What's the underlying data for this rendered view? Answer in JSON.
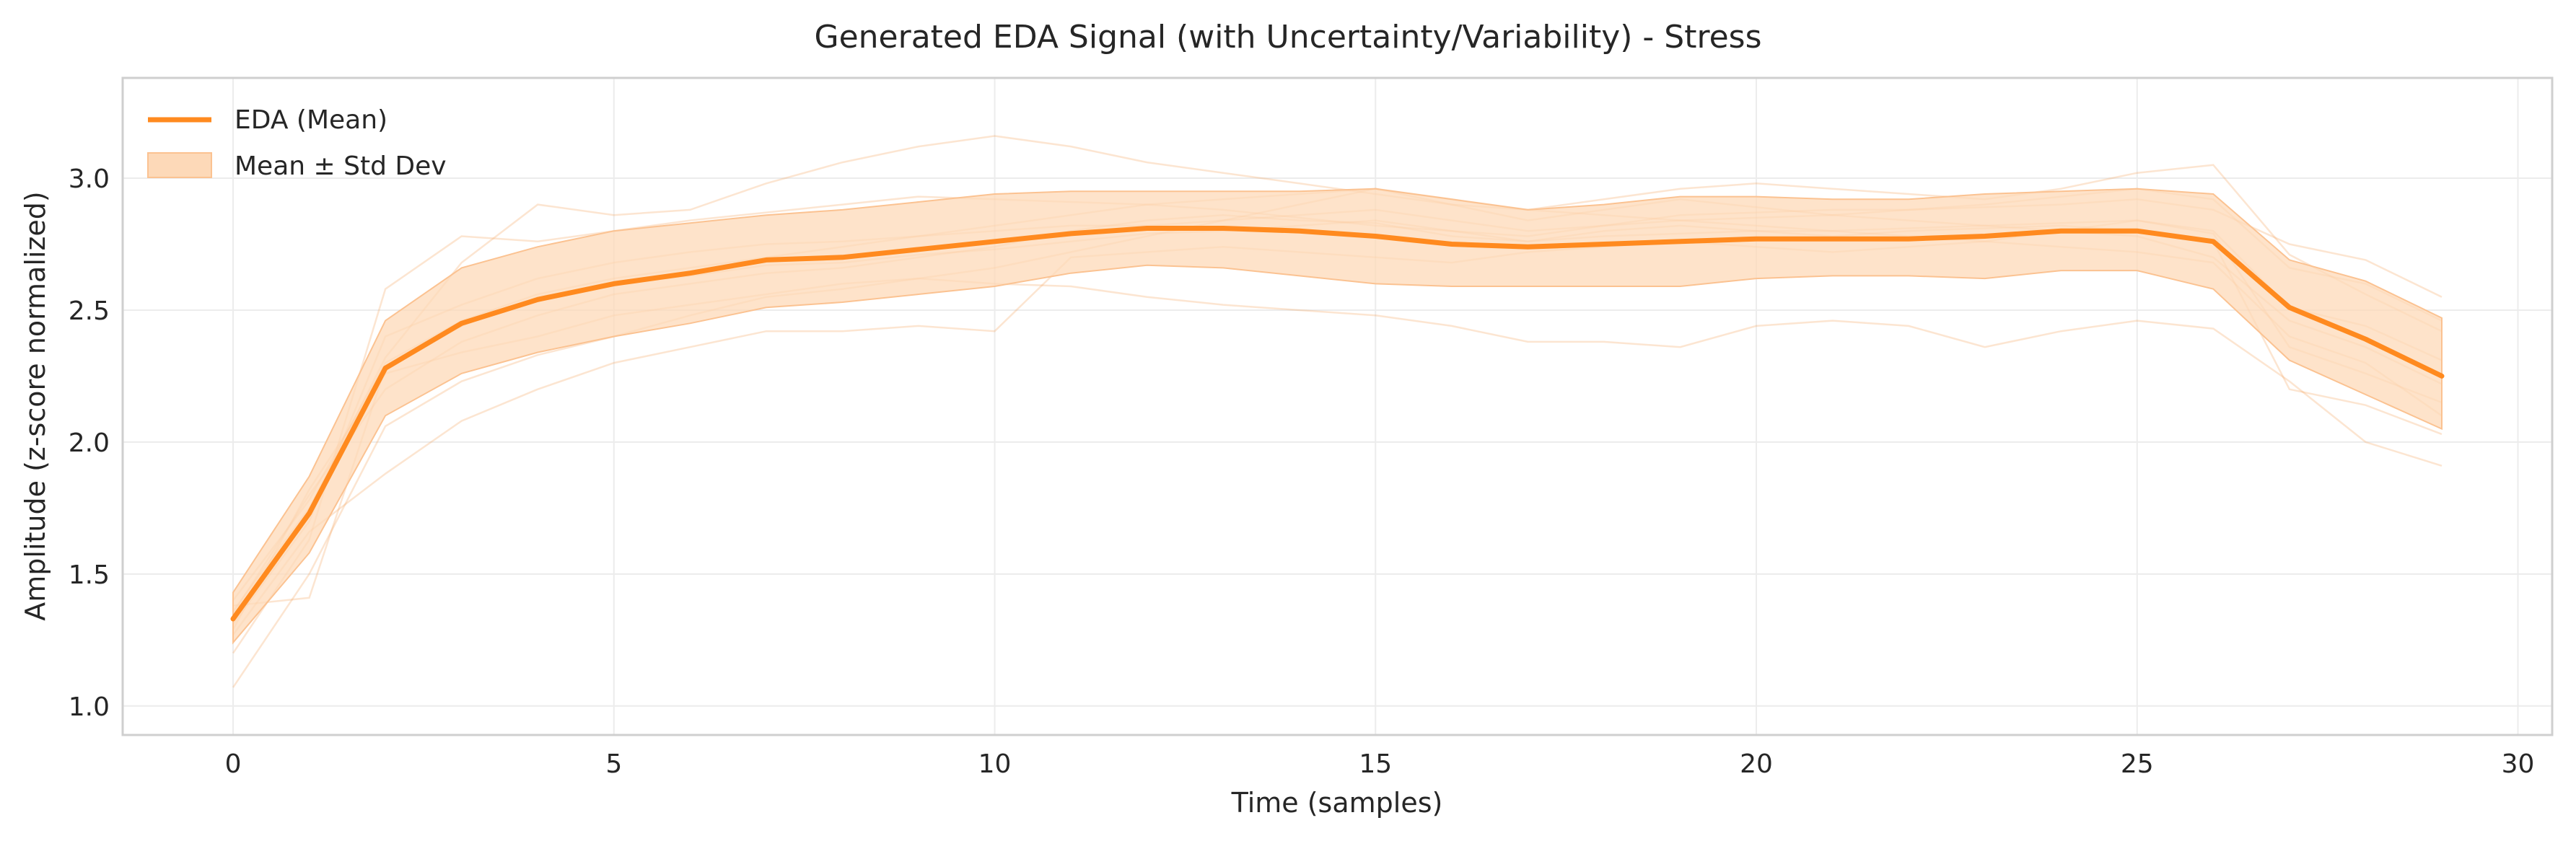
{
  "chart_data": {
    "type": "line",
    "title": "Generated EDA Signal (with Uncertainty/Variability) - Stress",
    "xlabel": "Time (samples)",
    "ylabel": "Amplitude (z-score normalized)",
    "xlim": [
      -1.45,
      30.45
    ],
    "ylim": [
      0.89,
      3.38
    ],
    "xticks": [
      0,
      5,
      10,
      15,
      20,
      25,
      30
    ],
    "yticks": [
      1.0,
      1.5,
      2.0,
      2.5,
      3.0
    ],
    "grid": true,
    "legend_position": "top-left",
    "legend": [
      "EDA (Mean)",
      "Mean ± Std Dev"
    ],
    "colors": {
      "mean": "#ff8a1f",
      "band": "#fdd9b8",
      "band_edge": "#fbc291",
      "samples": "#f6a05a",
      "grid": "#ececec",
      "frame": "#cfcfcf",
      "text": "#262626"
    },
    "x": [
      0,
      1,
      2,
      3,
      4,
      5,
      6,
      7,
      8,
      9,
      10,
      11,
      12,
      13,
      14,
      15,
      16,
      17,
      18,
      19,
      20,
      21,
      22,
      23,
      24,
      25,
      26,
      27,
      28,
      29
    ],
    "series": [
      {
        "name": "EDA (Mean)",
        "values": [
          1.33,
          1.73,
          2.28,
          2.45,
          2.54,
          2.6,
          2.64,
          2.69,
          2.7,
          2.73,
          2.76,
          2.79,
          2.81,
          2.81,
          2.8,
          2.78,
          2.75,
          2.74,
          2.75,
          2.76,
          2.77,
          2.77,
          2.77,
          2.78,
          2.8,
          2.8,
          2.76,
          2.51,
          2.39,
          2.25
        ]
      }
    ],
    "band": {
      "name": "Mean ± Std Dev",
      "upper": [
        1.43,
        1.87,
        2.46,
        2.66,
        2.74,
        2.8,
        2.83,
        2.86,
        2.88,
        2.91,
        2.94,
        2.95,
        2.95,
        2.95,
        2.95,
        2.96,
        2.92,
        2.88,
        2.9,
        2.93,
        2.93,
        2.92,
        2.92,
        2.94,
        2.95,
        2.96,
        2.94,
        2.69,
        2.61,
        2.47
      ],
      "lower": [
        1.24,
        1.58,
        2.1,
        2.26,
        2.34,
        2.4,
        2.45,
        2.51,
        2.53,
        2.56,
        2.59,
        2.64,
        2.67,
        2.66,
        2.63,
        2.6,
        2.59,
        2.59,
        2.59,
        2.59,
        2.62,
        2.63,
        2.63,
        2.62,
        2.65,
        2.65,
        2.58,
        2.31,
        2.18,
        2.05
      ]
    },
    "sample_traces": [
      [
        1.07,
        1.5,
        2.06,
        2.23,
        2.33,
        2.4,
        2.48,
        2.55,
        2.58,
        2.62,
        2.66,
        2.72,
        2.78,
        2.84,
        2.9,
        2.96,
        2.9,
        2.84,
        2.88,
        2.92,
        2.89,
        2.86,
        2.88,
        2.9,
        2.93,
        2.96,
        2.92,
        2.66,
        2.6,
        2.46
      ],
      [
        1.2,
        1.63,
        2.58,
        2.78,
        2.76,
        2.8,
        2.84,
        2.87,
        2.9,
        2.93,
        2.92,
        2.91,
        2.9,
        2.88,
        2.85,
        2.82,
        2.8,
        2.78,
        2.82,
        2.86,
        2.87,
        2.88,
        2.88,
        2.89,
        2.9,
        2.92,
        2.88,
        2.75,
        2.69,
        2.55
      ],
      [
        1.36,
        1.75,
        2.32,
        2.68,
        2.9,
        2.86,
        2.88,
        2.98,
        3.06,
        3.12,
        3.16,
        3.12,
        3.06,
        3.02,
        2.98,
        2.94,
        2.9,
        2.88,
        2.92,
        2.96,
        2.98,
        2.96,
        2.94,
        2.92,
        2.96,
        3.02,
        3.05,
        2.71,
        2.56,
        2.42
      ],
      [
        1.38,
        1.41,
        2.28,
        2.44,
        2.55,
        2.6,
        2.63,
        2.67,
        2.68,
        2.71,
        2.73,
        2.76,
        2.79,
        2.8,
        2.82,
        2.84,
        2.8,
        2.76,
        2.78,
        2.79,
        2.8,
        2.8,
        2.81,
        2.82,
        2.83,
        2.84,
        2.8,
        2.51,
        2.44,
        2.31
      ],
      [
        1.27,
        1.66,
        1.88,
        2.08,
        2.2,
        2.3,
        2.36,
        2.42,
        2.42,
        2.44,
        2.42,
        2.7,
        2.72,
        2.74,
        2.72,
        2.7,
        2.68,
        2.72,
        2.74,
        2.76,
        2.74,
        2.72,
        2.74,
        2.76,
        2.8,
        2.84,
        2.79,
        2.36,
        2.26,
        2.15
      ],
      [
        1.29,
        1.82,
        2.26,
        2.34,
        2.4,
        2.48,
        2.52,
        2.56,
        2.6,
        2.62,
        2.6,
        2.59,
        2.55,
        2.52,
        2.5,
        2.48,
        2.44,
        2.38,
        2.38,
        2.36,
        2.44,
        2.46,
        2.44,
        2.36,
        2.42,
        2.46,
        2.43,
        2.23,
        2.0,
        1.91
      ],
      [
        1.35,
        1.8,
        2.2,
        2.38,
        2.48,
        2.56,
        2.6,
        2.64,
        2.66,
        2.7,
        2.74,
        2.8,
        2.84,
        2.86,
        2.84,
        2.83,
        2.78,
        2.76,
        2.8,
        2.82,
        2.8,
        2.78,
        2.8,
        2.81,
        2.82,
        2.8,
        2.76,
        2.2,
        2.14,
        2.03
      ],
      [
        1.31,
        1.7,
        2.4,
        2.52,
        2.62,
        2.68,
        2.72,
        2.75,
        2.76,
        2.78,
        2.8,
        2.82,
        2.82,
        2.84,
        2.86,
        2.88,
        2.84,
        2.8,
        2.82,
        2.84,
        2.85,
        2.86,
        2.84,
        2.82,
        2.8,
        2.78,
        2.7,
        2.46,
        2.36,
        2.22
      ],
      [
        1.4,
        1.78,
        2.3,
        2.46,
        2.56,
        2.62,
        2.66,
        2.7,
        2.74,
        2.78,
        2.82,
        2.86,
        2.9,
        2.92,
        2.94,
        2.96,
        2.92,
        2.88,
        2.86,
        2.84,
        2.82,
        2.8,
        2.78,
        2.76,
        2.74,
        2.72,
        2.68,
        2.4,
        2.3,
        2.1
      ]
    ]
  }
}
